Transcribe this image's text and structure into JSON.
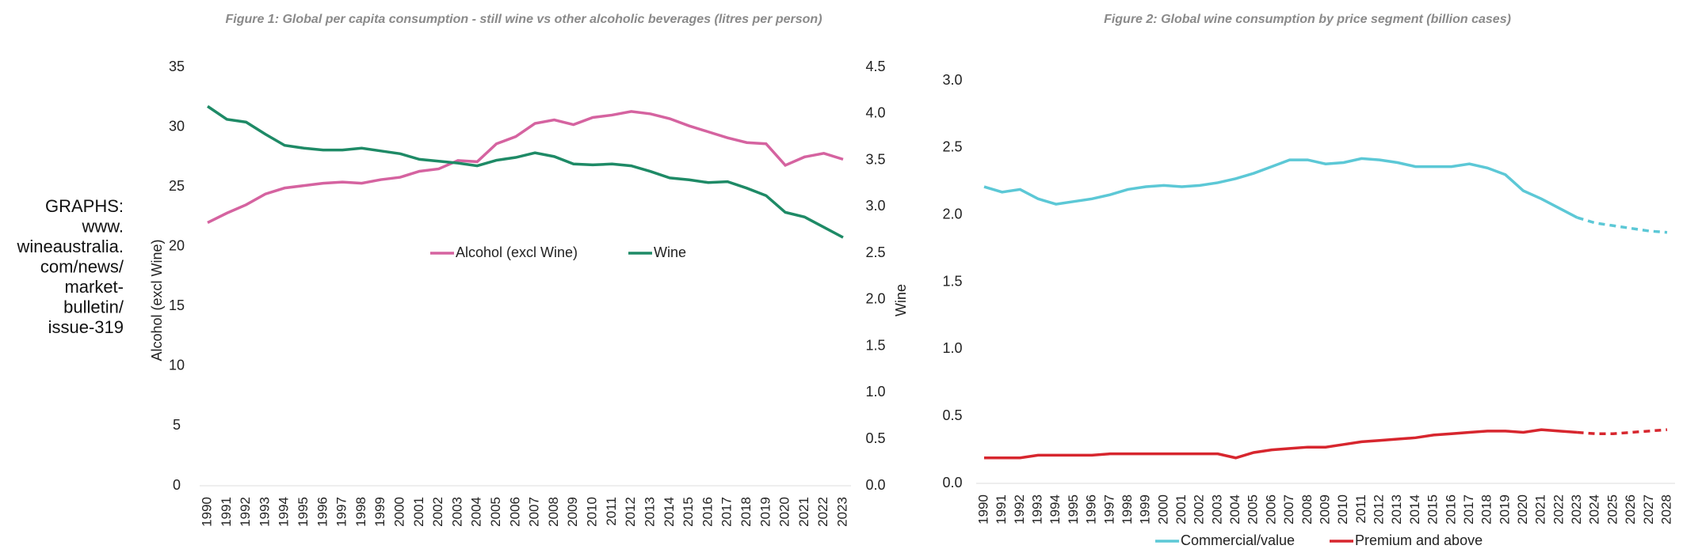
{
  "side_note": [
    "GRAPHS:",
    "www.",
    "wineaustralia.",
    "com/news/",
    "market-",
    "bulletin/",
    "issue-319"
  ],
  "chart_data": [
    {
      "type": "line",
      "title": "Figure 1: Global per capita consumption - still wine vs other alcoholic beverages (litres per person)",
      "ylabel": "Alcohol (excl Wine)",
      "y2label": "Wine",
      "categories": [
        "1990",
        "1991",
        "1992",
        "1993",
        "1994",
        "1995",
        "1996",
        "1997",
        "1998",
        "1999",
        "2000",
        "2001",
        "2002",
        "2003",
        "2004",
        "2005",
        "2006",
        "2007",
        "2008",
        "2009",
        "2010",
        "2011",
        "2012",
        "2013",
        "2014",
        "2015",
        "2016",
        "2017",
        "2018",
        "2019",
        "2020",
        "2021",
        "2022",
        "2023"
      ],
      "series": [
        {
          "name": "Alcohol (excl Wine)",
          "color": "#d563a0",
          "values": [
            22.0,
            22.8,
            23.5,
            24.4,
            24.9,
            25.1,
            25.3,
            25.4,
            25.3,
            25.6,
            25.8,
            26.3,
            26.5,
            27.2,
            27.1,
            28.6,
            29.2,
            30.3,
            30.6,
            30.2,
            30.8,
            31.0,
            31.3,
            31.1,
            30.7,
            30.1,
            29.6,
            29.1,
            28.7,
            28.6,
            26.8,
            27.5,
            27.8,
            27.3
          ]
        },
        {
          "name": "Wine",
          "color": "#1e8a66",
          "axis": "y2",
          "values": [
            4.08,
            3.94,
            3.91,
            3.78,
            3.66,
            3.63,
            3.61,
            3.61,
            3.63,
            3.6,
            3.57,
            3.51,
            3.49,
            3.47,
            3.44,
            3.5,
            3.53,
            3.58,
            3.54,
            3.46,
            3.45,
            3.46,
            3.44,
            3.38,
            3.31,
            3.29,
            3.26,
            3.27,
            3.2,
            3.12,
            2.94,
            2.89,
            2.78,
            2.67
          ]
        }
      ],
      "ylim": [
        0,
        35
      ],
      "yticks": [
        0,
        5,
        10,
        15,
        20,
        25,
        30,
        35
      ],
      "y2lim": [
        0,
        4.5
      ],
      "y2ticks": [
        {
          "value": 0,
          "label": "0.0"
        },
        0.5,
        {
          "value": 1,
          "label": "1.0"
        },
        1.5,
        {
          "value": 2,
          "label": "2.0"
        },
        2.5,
        {
          "value": 3,
          "label": "3.0"
        },
        3.5,
        {
          "value": 4,
          "label": "4.0"
        },
        4.5
      ],
      "legend": "center"
    },
    {
      "type": "line",
      "title": "Figure 2: Global wine consumption by price segment (billion cases)",
      "categories": [
        "1990",
        "1991",
        "1992",
        "1993",
        "1994",
        "1995",
        "1996",
        "1997",
        "1998",
        "1999",
        "2000",
        "2001",
        "2002",
        "2003",
        "2004",
        "2005",
        "2006",
        "2007",
        "2008",
        "2009",
        "2010",
        "2011",
        "2012",
        "2013",
        "2014",
        "2015",
        "2016",
        "2017",
        "2018",
        "2019",
        "2020",
        "2021",
        "2022",
        "2023",
        "2024",
        "2025",
        "2026",
        "2027",
        "2028"
      ],
      "series": [
        {
          "name": "Commercial/value",
          "color": "#5cc8d6",
          "values": [
            2.21,
            2.17,
            2.19,
            2.12,
            2.08,
            2.1,
            2.12,
            2.15,
            2.19,
            2.21,
            2.22,
            2.21,
            2.22,
            2.24,
            2.27,
            2.31,
            2.36,
            2.41,
            2.41,
            2.38,
            2.39,
            2.42,
            2.41,
            2.39,
            2.36,
            2.36,
            2.36,
            2.38,
            2.35,
            2.3,
            2.18,
            2.12,
            2.05,
            1.98,
            1.94,
            1.92,
            1.9,
            1.88,
            1.87
          ]
        },
        {
          "name": "Premium and above",
          "color": "#d7262e",
          "values": [
            0.19,
            0.19,
            0.19,
            0.21,
            0.21,
            0.21,
            0.21,
            0.22,
            0.22,
            0.22,
            0.22,
            0.22,
            0.22,
            0.22,
            0.19,
            0.23,
            0.25,
            0.26,
            0.27,
            0.27,
            0.29,
            0.31,
            0.32,
            0.33,
            0.34,
            0.36,
            0.37,
            0.38,
            0.39,
            0.39,
            0.38,
            0.4,
            0.39,
            0.38,
            0.37,
            0.37,
            0.38,
            0.39,
            0.4
          ]
        }
      ],
      "ylim": [
        0,
        3
      ],
      "yticks": [
        {
          "value": 0,
          "label": "0.0"
        },
        0.5,
        {
          "value": 1,
          "label": "1.0"
        },
        1.5,
        {
          "value": 2,
          "label": "2.0"
        },
        2.5,
        {
          "value": 3,
          "label": "3.0"
        }
      ],
      "dashed_from": "2023",
      "legend": "bottom"
    }
  ]
}
